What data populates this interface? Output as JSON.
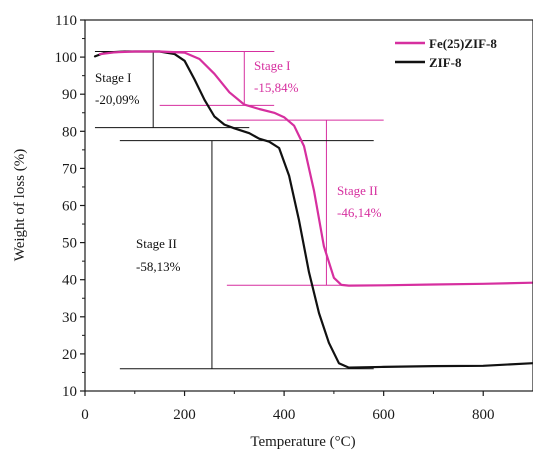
{
  "chart_data": {
    "type": "line",
    "xlabel": "Temperature (°C)",
    "ylabel": "Weight of loss (%)",
    "xlim": [
      0,
      900
    ],
    "ylim": [
      10,
      110
    ],
    "xticks": [
      0,
      200,
      400,
      600,
      800
    ],
    "yticks": [
      10,
      20,
      30,
      40,
      50,
      60,
      70,
      80,
      90,
      100,
      110
    ],
    "grid": false,
    "legend_position": "top-right",
    "series": [
      {
        "name": "Fe(25)ZIF-8",
        "color": "#d62f9f",
        "points": [
          [
            30,
            100.8
          ],
          [
            60,
            101.3
          ],
          [
            100,
            101.5
          ],
          [
            150,
            101.5
          ],
          [
            200,
            101.2
          ],
          [
            230,
            99.5
          ],
          [
            260,
            95.5
          ],
          [
            290,
            90.5
          ],
          [
            320,
            87.2
          ],
          [
            350,
            86.0
          ],
          [
            380,
            85.0
          ],
          [
            400,
            83.8
          ],
          [
            420,
            81.5
          ],
          [
            440,
            76.0
          ],
          [
            460,
            64.0
          ],
          [
            480,
            49.0
          ],
          [
            500,
            40.5
          ],
          [
            515,
            38.6
          ],
          [
            530,
            38.4
          ],
          [
            600,
            38.5
          ],
          [
            700,
            38.7
          ],
          [
            800,
            38.9
          ],
          [
            900,
            39.2
          ]
        ]
      },
      {
        "name": "ZIF-8",
        "color": "#111111",
        "points": [
          [
            20,
            100.2
          ],
          [
            40,
            101.2
          ],
          [
            80,
            101.5
          ],
          [
            150,
            101.5
          ],
          [
            180,
            100.8
          ],
          [
            200,
            99.0
          ],
          [
            220,
            94.0
          ],
          [
            240,
            88.5
          ],
          [
            260,
            84.0
          ],
          [
            280,
            81.8
          ],
          [
            300,
            80.8
          ],
          [
            330,
            79.5
          ],
          [
            350,
            78.0
          ],
          [
            370,
            77.2
          ],
          [
            390,
            75.5
          ],
          [
            410,
            68.0
          ],
          [
            430,
            56.0
          ],
          [
            450,
            42.0
          ],
          [
            470,
            31.0
          ],
          [
            490,
            23.0
          ],
          [
            510,
            17.5
          ],
          [
            530,
            16.3
          ],
          [
            600,
            16.5
          ],
          [
            700,
            16.7
          ],
          [
            800,
            16.8
          ],
          [
            900,
            17.5
          ]
        ]
      }
    ],
    "annotations": [
      {
        "label": "Stage I",
        "value": "-20,09%",
        "color": "#111111"
      },
      {
        "label": "Stage I",
        "value": "-15,84%",
        "color": "#d62f9f"
      },
      {
        "label": "Stage II",
        "value": "-46,14%",
        "color": "#d62f9f"
      },
      {
        "label": "Stage II",
        "value": "-58,13%",
        "color": "#111111"
      }
    ]
  },
  "colors": {
    "fe_zif8": "#d62f9f",
    "zif8": "#111111",
    "axis": "#1a1a1a"
  }
}
